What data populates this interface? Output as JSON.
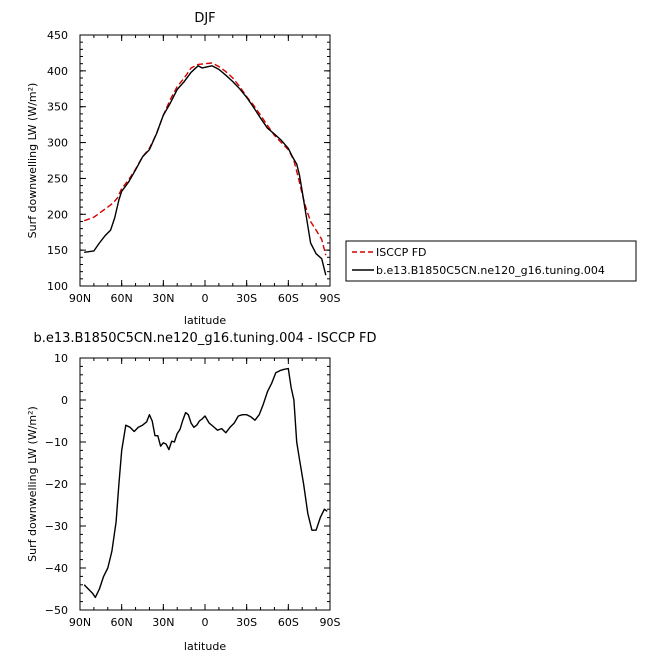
{
  "chart_data": [
    {
      "type": "line",
      "title": "DJF",
      "xlabel": "latitude",
      "ylabel": "Surf downwelling LW (W/m²)",
      "xlim": [
        90,
        -90
      ],
      "ylim": [
        100,
        450
      ],
      "xticks": [
        90,
        60,
        30,
        0,
        -30,
        -60,
        -90
      ],
      "xtick_labels": [
        "90N",
        "60N",
        "30N",
        "0",
        "30S",
        "60S",
        "90S"
      ],
      "yticks": [
        100,
        150,
        200,
        250,
        300,
        350,
        400,
        450
      ],
      "ytick_labels": [
        "100",
        "150",
        "200",
        "250",
        "300",
        "350",
        "400",
        "450"
      ],
      "legend": {
        "position": "right"
      },
      "series": [
        {
          "name": "ISCCP FD",
          "color": "#d40000",
          "dash": "dashed",
          "x": [
            87,
            80,
            75,
            70,
            66,
            63,
            60,
            55,
            50,
            45,
            40,
            35,
            30,
            25,
            20,
            15,
            10,
            5,
            0,
            -5,
            -10,
            -15,
            -20,
            -25,
            -30,
            -35,
            -40,
            -45,
            -50,
            -55,
            -60,
            -62,
            -64,
            -66,
            -68,
            -70,
            -73,
            -76,
            -80,
            -84,
            -87
          ],
          "values": [
            191,
            196,
            203,
            210,
            216,
            223,
            236,
            248,
            263,
            280,
            292,
            312,
            338,
            360,
            378,
            390,
            404,
            409,
            410,
            411,
            406,
            399,
            390,
            378,
            364,
            352,
            338,
            324,
            310,
            300,
            290,
            283,
            275,
            260,
            245,
            228,
            207,
            190,
            178,
            165,
            143
          ]
        },
        {
          "name": "b.e13.B1850C5CN.ne120_g16.tuning.004",
          "color": "#000000",
          "dash": "solid",
          "x": [
            87,
            80,
            76,
            72,
            68,
            65,
            62,
            60,
            55,
            50,
            45,
            40,
            35,
            30,
            25,
            20,
            15,
            10,
            5,
            2,
            0,
            -5,
            -10,
            -15,
            -20,
            -25,
            -30,
            -35,
            -40,
            -45,
            -50,
            -55,
            -60,
            -63,
            -66,
            -68,
            -70,
            -73,
            -76,
            -80,
            -84,
            -87
          ],
          "values": [
            147,
            149,
            160,
            170,
            178,
            195,
            220,
            232,
            245,
            262,
            280,
            290,
            312,
            338,
            355,
            374,
            385,
            398,
            407,
            404,
            405,
            407,
            402,
            394,
            385,
            375,
            363,
            349,
            334,
            320,
            312,
            303,
            292,
            280,
            270,
            255,
            232,
            196,
            160,
            145,
            138,
            115
          ]
        }
      ]
    },
    {
      "type": "line",
      "title": "b.e13.B1850C5CN.ne120_g16.tuning.004 - ISCCP FD",
      "xlabel": "latitude",
      "ylabel": "Surf downwelling LW (W/m²)",
      "xlim": [
        90,
        -90
      ],
      "ylim": [
        -50,
        10
      ],
      "xticks": [
        90,
        60,
        30,
        0,
        -30,
        -60,
        -90
      ],
      "xtick_labels": [
        "90N",
        "60N",
        "30N",
        "0",
        "30S",
        "60S",
        "90S"
      ],
      "yticks": [
        -50,
        -40,
        -30,
        -20,
        -10,
        0,
        10
      ],
      "ytick_labels": [
        "−50",
        "−40",
        "−30",
        "−20",
        "−10",
        "0",
        "10"
      ],
      "series": [
        {
          "color": "#000000",
          "dash": "solid",
          "x": [
            87,
            84,
            81,
            79,
            76,
            73,
            70,
            67,
            64,
            62,
            60,
            57,
            54,
            51,
            48,
            45,
            42,
            40,
            38,
            36,
            34,
            32,
            30,
            28,
            26,
            24,
            22,
            20,
            18,
            16,
            14,
            12,
            10,
            8,
            6,
            4,
            2,
            0,
            -3,
            -6,
            -9,
            -12,
            -15,
            -18,
            -21,
            -24,
            -27,
            -30,
            -33,
            -36,
            -39,
            -42,
            -45,
            -48,
            -51,
            -54,
            -57,
            -60,
            -62,
            -64,
            -66,
            -68,
            -71,
            -74,
            -77,
            -80,
            -83,
            -86,
            -88
          ],
          "values": [
            -44,
            -45,
            -46,
            -47,
            -45,
            -42,
            -40,
            -36,
            -29,
            -20,
            -12,
            -6,
            -6.5,
            -7.5,
            -6.5,
            -6,
            -5.2,
            -3.5,
            -5,
            -8.5,
            -8.5,
            -11,
            -10.2,
            -10.5,
            -11.8,
            -9.8,
            -10,
            -8,
            -7,
            -4.8,
            -3,
            -3.5,
            -5.5,
            -6.5,
            -6,
            -5,
            -4.5,
            -3.8,
            -5.5,
            -6.3,
            -7.2,
            -6.8,
            -7.8,
            -6.5,
            -5.5,
            -3.8,
            -3.5,
            -3.5,
            -4,
            -4.8,
            -3.5,
            -1,
            2,
            4,
            6.5,
            7,
            7.3,
            7.5,
            3,
            0,
            -10,
            -14,
            -20,
            -27,
            -31,
            -31,
            -28,
            -26,
            -26.5
          ]
        }
      ]
    }
  ]
}
